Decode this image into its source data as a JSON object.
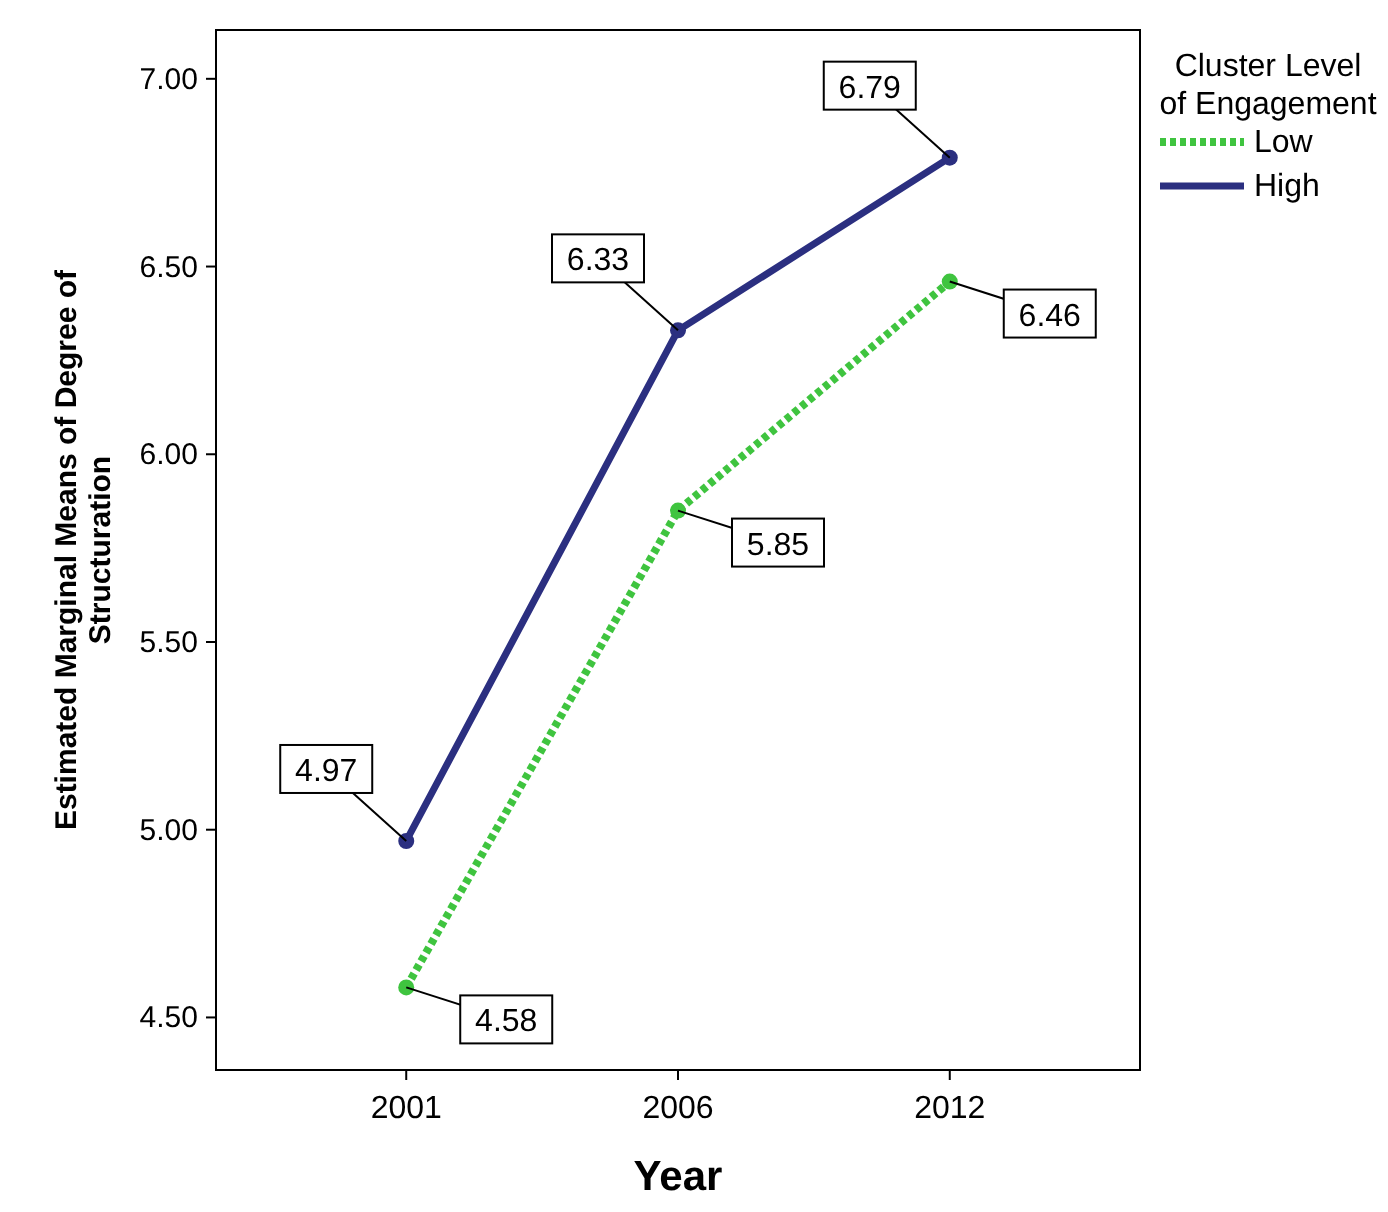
{
  "chart_data": {
    "type": "line",
    "xlabel": "Year",
    "ylabel": "Estimated Marginal Means of Degree of Structuration",
    "legend_title": "Cluster Level of Engagement",
    "categories": [
      "2001",
      "2006",
      "2012"
    ],
    "series": [
      {
        "name": "Low",
        "color": "#3fc43f",
        "line_style": "dotted",
        "values": [
          4.58,
          5.85,
          6.46
        ]
      },
      {
        "name": "High",
        "color": "#2b2f80",
        "line_style": "solid",
        "values": [
          4.97,
          6.33,
          6.79
        ]
      }
    ],
    "ylim": [
      4.36,
      7.13
    ],
    "yticks": [
      {
        "value": 4.5,
        "label": "4.50"
      },
      {
        "value": 5,
        "label": "5.00"
      },
      {
        "value": 5.5,
        "label": "5.50"
      },
      {
        "value": 6,
        "label": "6.00"
      },
      {
        "value": 6.5,
        "label": "6.50"
      },
      {
        "value": 7,
        "label": "7.00"
      }
    ],
    "data_labels": true,
    "marker": "circle",
    "legend": "right",
    "grid": false
  }
}
